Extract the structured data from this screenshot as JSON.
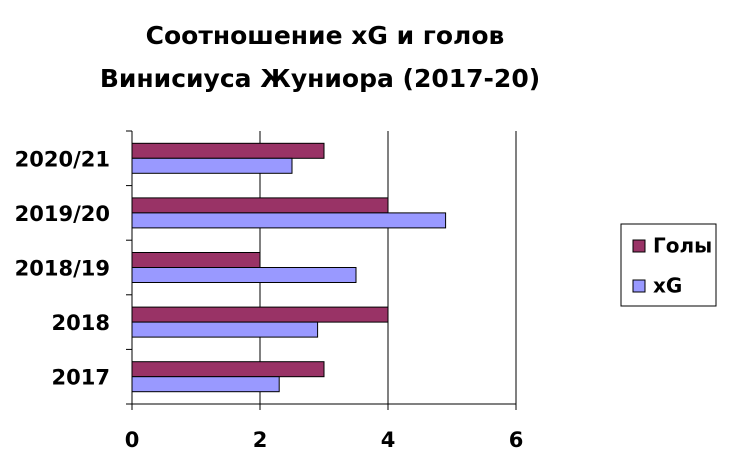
{
  "chart_data": {
    "type": "hbar",
    "title": [
      "Соотношение xG и голов",
      "Винисиуса Жуниора (2017-20)"
    ],
    "categories": [
      "2017",
      "2018",
      "2018/19",
      "2019/20",
      "2020/21"
    ],
    "series": [
      {
        "name": "Голы",
        "color": "#993366",
        "values": [
          3,
          4,
          2,
          4,
          3
        ]
      },
      {
        "name": "xG",
        "color": "#9999ff",
        "values": [
          2.3,
          2.9,
          3.5,
          4.9,
          2.5
        ]
      }
    ],
    "xlim": [
      0,
      6
    ],
    "xticks": [
      0,
      2,
      4,
      6
    ],
    "grid": true,
    "legend": "right"
  }
}
